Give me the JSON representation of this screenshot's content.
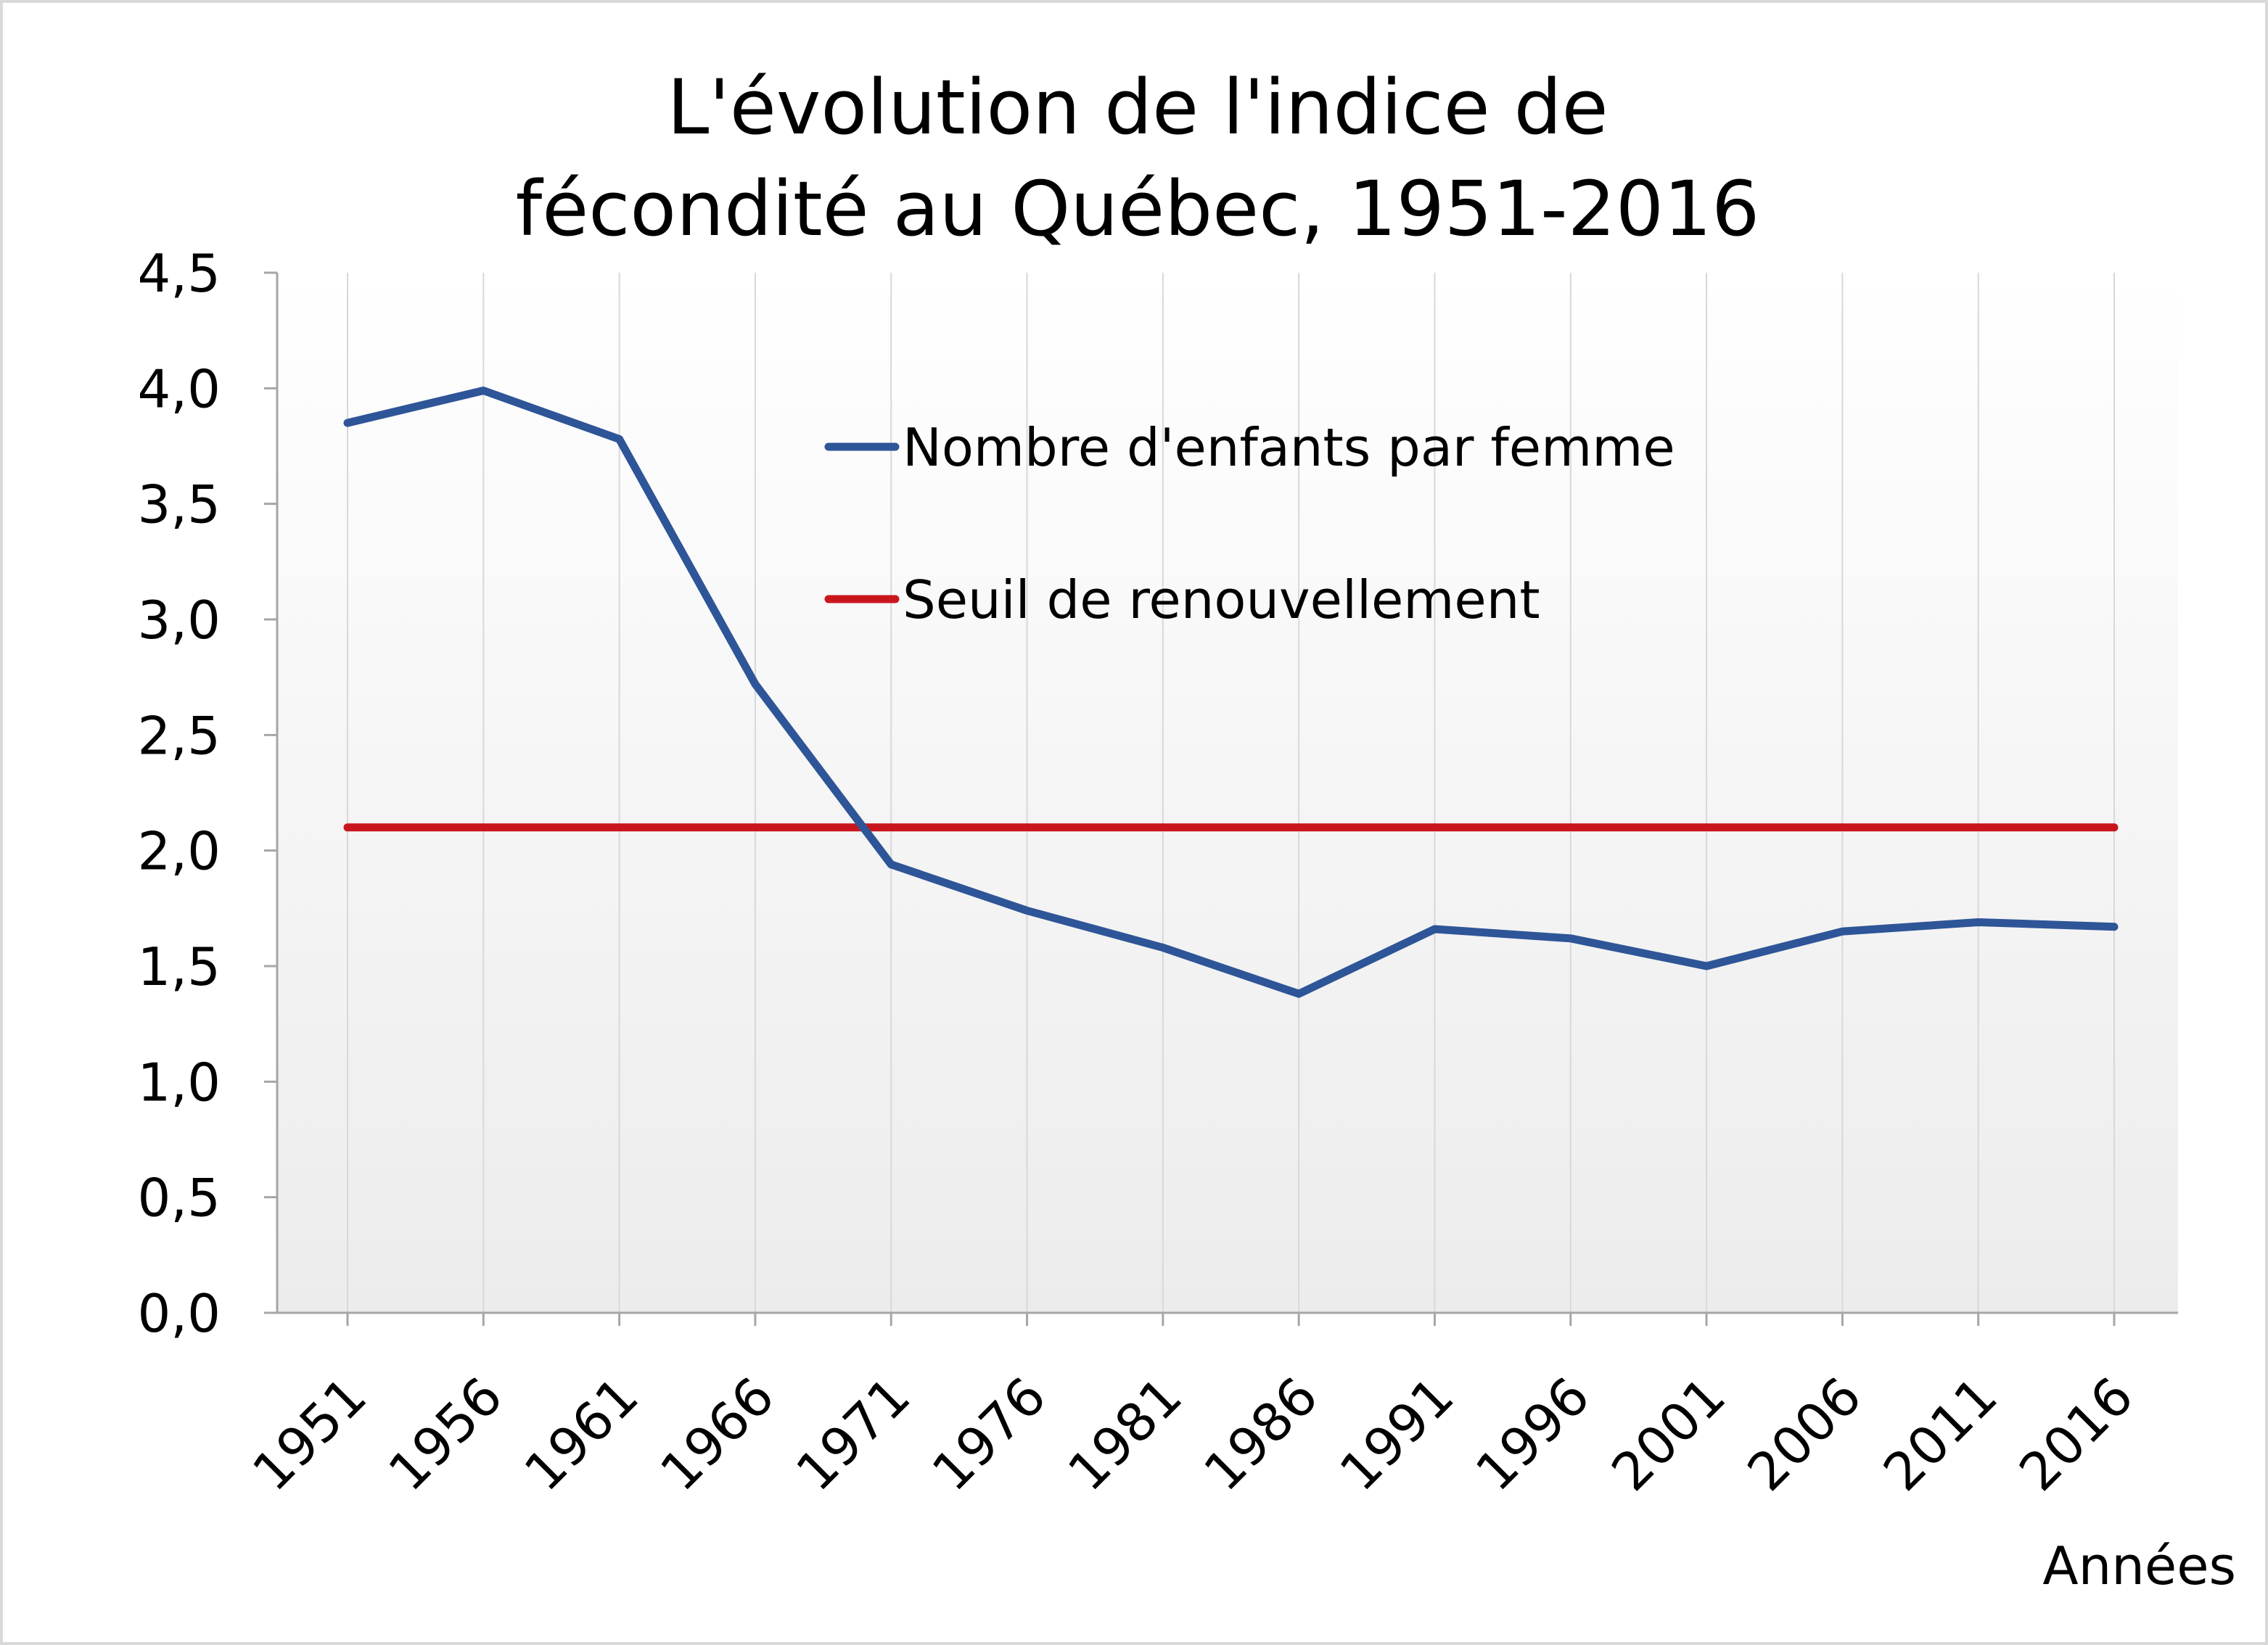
{
  "chart_data": {
    "type": "line",
    "title": "L'évolution de l'indice de fécondité au Québec, 1951-2016",
    "title_lines": [
      "L'évolution de l'indice de",
      "fécondité au Québec, 1951-2016"
    ],
    "xlabel": "Années",
    "ylabel": "",
    "categories": [
      "1951",
      "1956",
      "1961",
      "1966",
      "1971",
      "1976",
      "1981",
      "1986",
      "1991",
      "1996",
      "2001",
      "2006",
      "2011",
      "2016"
    ],
    "y_tick_labels": [
      "0,0",
      "0,5",
      "1,0",
      "1,5",
      "2,0",
      "2,5",
      "3,0",
      "3,5",
      "4,0",
      "4,5"
    ],
    "ylim": [
      0,
      4.5
    ],
    "grid": "vertical",
    "legend_position": "upper-center",
    "series": [
      {
        "name": "Nombre d'enfants par femme",
        "color": "#2e5597",
        "values": [
          3.85,
          3.99,
          3.78,
          2.72,
          1.94,
          1.74,
          1.58,
          1.38,
          1.66,
          1.62,
          1.5,
          1.65,
          1.69,
          1.67
        ]
      },
      {
        "name": "Seuil de renouvellement",
        "color": "#c9161d",
        "values": [
          2.1,
          2.1,
          2.1,
          2.1,
          2.1,
          2.1,
          2.1,
          2.1,
          2.1,
          2.1,
          2.1,
          2.1,
          2.1,
          2.1
        ]
      }
    ]
  }
}
